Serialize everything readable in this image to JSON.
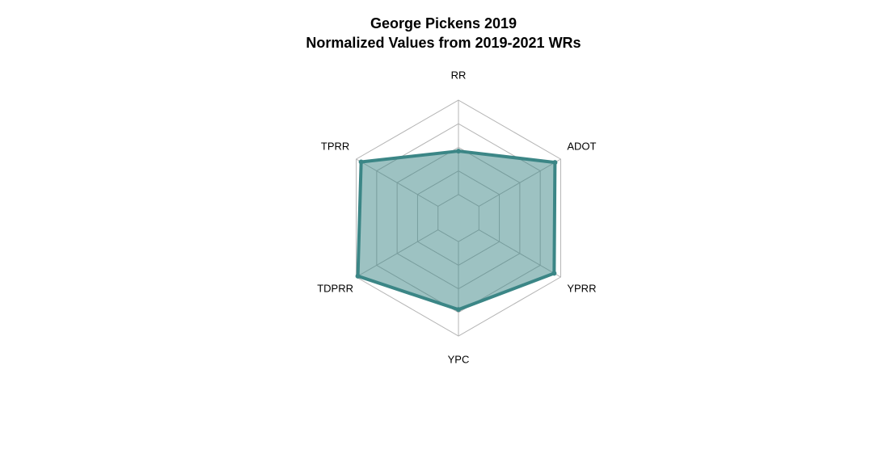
{
  "chart_data": {
    "type": "radar",
    "title": "George Pickens 2019",
    "subtitle": "Normalized Values from 2019-2021 WRs",
    "axes": [
      "RR",
      "ADOT",
      "YPRR",
      "YPC",
      "TDPRR",
      "TPRR"
    ],
    "values": [
      0.46,
      0.93,
      0.92,
      0.72,
      0.98,
      0.94
    ],
    "range": [
      0,
      1
    ],
    "grid_levels": 5,
    "legend": "none",
    "colors": {
      "line": "#3b8686",
      "fill": "#3b8686",
      "grid": "#b4b4b4"
    }
  }
}
